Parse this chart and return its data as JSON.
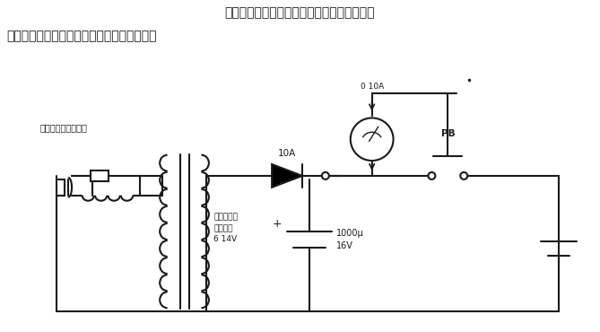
{
  "bg": "#ffffff",
  "lc": "#1a1a1a",
  "lw": 1.5,
  "title1": "它用来消除镍镉电池内部的短路。操作时，将",
  "title2": "镍镉电池接在输出端并按压按钮开关三秒钟。",
  "note": "对元件无特别的要求",
  "lbl_diode": "10A",
  "lbl_ammeter": "0 10A",
  "lbl_pb": "PB",
  "lbl_transformer": "门铃或阴极\n灯变压器\n6 14V",
  "lbl_cap": "1000μ\n16V",
  "figw": 6.69,
  "figh": 3.7,
  "dpi": 100
}
